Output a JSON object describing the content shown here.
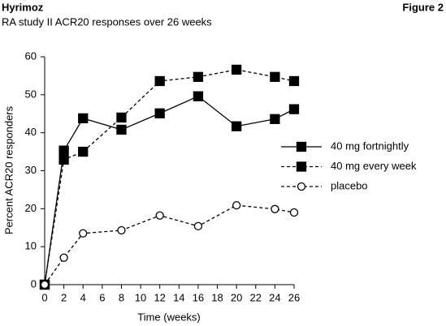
{
  "chart_data": {
    "type": "line",
    "title": "Hyrimoz",
    "figure_label": "Figure 2",
    "subtitle": "RA study II ACR20 responses over 26 weeks",
    "x_label": "Time (weeks)",
    "y_label": "Percent ACR20 responders",
    "x": [
      0,
      2,
      4,
      8,
      12,
      16,
      20,
      24,
      26
    ],
    "series": [
      {
        "name": "40 mg fortnightly",
        "color": "#000000",
        "dashed": false,
        "marker": "square",
        "filled": true,
        "values": [
          0,
          35.3,
          43.8,
          40.8,
          45.1,
          49.6,
          41.7,
          43.6,
          46.2
        ]
      },
      {
        "name": "40 mg every week",
        "color": "#000000",
        "dashed": true,
        "marker": "square",
        "filled": true,
        "values": [
          0,
          32.9,
          35.0,
          44.0,
          53.6,
          54.7,
          56.6,
          54.7,
          53.6
        ]
      },
      {
        "name": "placebo",
        "color": "#000000",
        "dashed": true,
        "marker": "circle",
        "filled": false,
        "values": [
          0,
          7.1,
          13.5,
          14.3,
          18.2,
          15.4,
          20.9,
          19.9,
          19.0
        ]
      }
    ],
    "xlim": [
      0,
      26
    ],
    "xticks": [
      0,
      2,
      4,
      6,
      8,
      10,
      12,
      14,
      16,
      18,
      20,
      22,
      24,
      26
    ],
    "ylim": [
      0,
      60
    ],
    "yticks": [
      0,
      10,
      20,
      30,
      40,
      50,
      60
    ],
    "grid": false
  }
}
